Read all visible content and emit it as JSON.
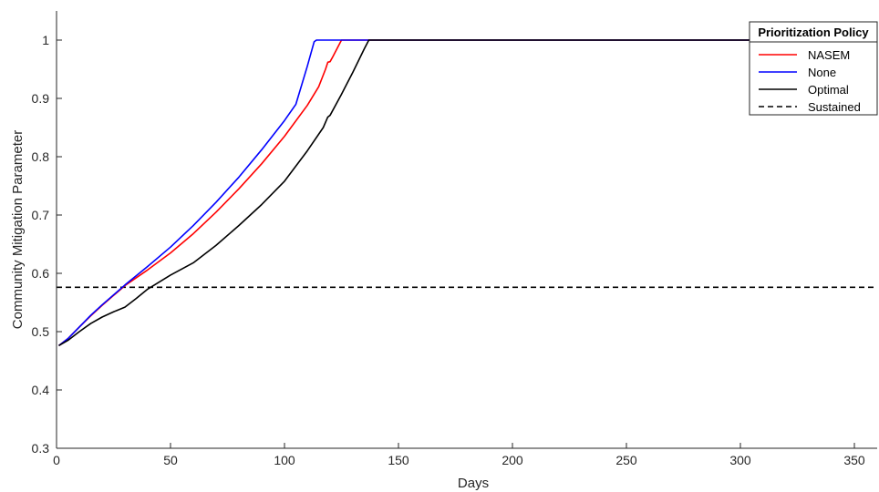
{
  "chart_data": {
    "type": "line",
    "xlabel": "Days",
    "ylabel": "Community Mitigation Parameter",
    "xlim": [
      0,
      360
    ],
    "ylim": [
      0.3,
      1.05
    ],
    "xticks": [
      0,
      50,
      100,
      150,
      200,
      250,
      300,
      350
    ],
    "yticks": [
      0.3,
      0.4,
      0.5,
      0.6,
      0.7,
      0.8,
      0.9,
      1
    ],
    "xtick_labels": [
      "0",
      "50",
      "100",
      "150",
      "200",
      "250",
      "300",
      "350"
    ],
    "ytick_labels": [
      "0.3",
      "0.4",
      "0.5",
      "0.6",
      "0.7",
      "0.8",
      "0.9",
      "1"
    ],
    "grid": false,
    "legend": {
      "title": "Prioritization Policy",
      "placement": "top-right"
    },
    "series": [
      {
        "name": "NASEM",
        "color": "#ff0000",
        "style": "solid",
        "x": [
          1,
          5,
          10,
          15,
          20,
          25,
          28,
          30,
          40,
          50,
          60,
          70,
          80,
          90,
          100,
          110,
          115,
          118,
          119,
          120,
          121,
          123,
          125,
          130,
          140,
          150,
          200,
          250,
          300,
          358
        ],
        "y": [
          0.476,
          0.488,
          0.508,
          0.527,
          0.545,
          0.562,
          0.572,
          0.579,
          0.606,
          0.635,
          0.668,
          0.705,
          0.745,
          0.788,
          0.835,
          0.888,
          0.92,
          0.95,
          0.962,
          0.963,
          0.97,
          0.985,
          1.0,
          1.0,
          1.0,
          1.0,
          1.0,
          1.0,
          1.0,
          1.0
        ]
      },
      {
        "name": "None",
        "color": "#0000ff",
        "style": "solid",
        "x": [
          1,
          5,
          10,
          15,
          20,
          25,
          30,
          40,
          50,
          60,
          70,
          80,
          90,
          100,
          105,
          110,
          113,
          114,
          120,
          130,
          150,
          200,
          250,
          300,
          358
        ],
        "y": [
          0.476,
          0.488,
          0.508,
          0.528,
          0.546,
          0.563,
          0.58,
          0.612,
          0.645,
          0.682,
          0.722,
          0.765,
          0.812,
          0.862,
          0.89,
          0.955,
          0.997,
          1.0,
          1.0,
          1.0,
          1.0,
          1.0,
          1.0,
          1.0,
          1.0
        ]
      },
      {
        "name": "Optimal",
        "color": "#000000",
        "style": "solid",
        "x": [
          1,
          5,
          10,
          15,
          20,
          25,
          30,
          35,
          40,
          50,
          60,
          70,
          80,
          90,
          100,
          110,
          117,
          119,
          120,
          125,
          130,
          135,
          137,
          140,
          150,
          200,
          250,
          300,
          358
        ],
        "y": [
          0.476,
          0.485,
          0.5,
          0.514,
          0.525,
          0.534,
          0.542,
          0.557,
          0.573,
          0.597,
          0.618,
          0.648,
          0.682,
          0.718,
          0.758,
          0.81,
          0.85,
          0.868,
          0.871,
          0.907,
          0.945,
          0.985,
          1.0,
          1.0,
          1.0,
          1.0,
          1.0,
          1.0,
          1.0
        ]
      },
      {
        "name": "Sustained",
        "color": "#000000",
        "style": "dashed",
        "x": [
          0,
          360
        ],
        "y": [
          0.576,
          0.576
        ]
      }
    ]
  }
}
